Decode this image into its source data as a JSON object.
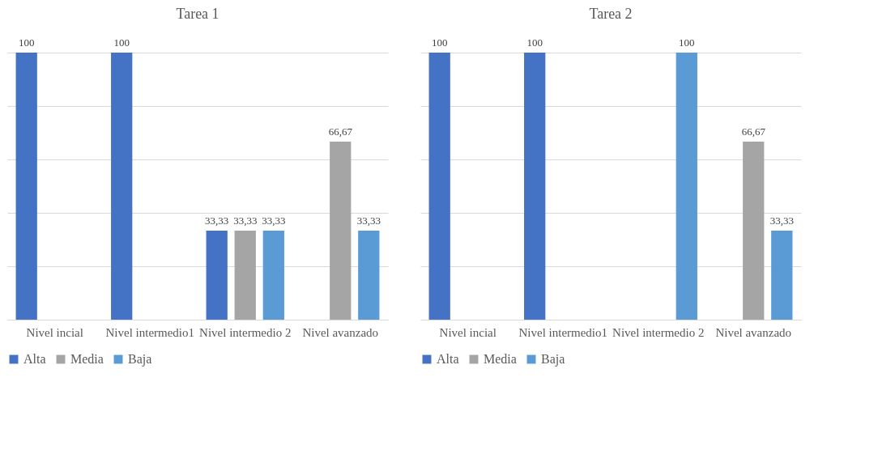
{
  "chart_data": [
    {
      "type": "bar",
      "title": "Tarea 1",
      "categories": [
        "Nivel incial",
        "Nivel intermedio1",
        "Nivel intermedio 2",
        "Nivel avanzado"
      ],
      "series": [
        {
          "name": "Alta",
          "color": "#4472c4",
          "values": [
            100,
            100,
            33.33,
            null
          ],
          "value_labels": [
            "100",
            "100",
            "33,33",
            null
          ]
        },
        {
          "name": "Media",
          "color": "#a5a5a5",
          "values": [
            null,
            null,
            33.33,
            66.67
          ],
          "value_labels": [
            null,
            null,
            "33,33",
            "66,67"
          ]
        },
        {
          "name": "Baja",
          "color": "#5b9bd5",
          "values": [
            null,
            null,
            33.33,
            33.33
          ],
          "value_labels": [
            null,
            null,
            "33,33",
            "33,33"
          ]
        }
      ],
      "tick_labels": "x",
      "grid": "y",
      "legend": "bottom"
    },
    {
      "type": "bar",
      "title": "Tarea 2",
      "categories": [
        "Nivel incial",
        "Nivel intermedio1",
        "Nivel intermedio 2",
        "Nivel avanzado"
      ],
      "series": [
        {
          "name": "Alta",
          "color": "#4472c4",
          "values": [
            100,
            100,
            null,
            null
          ],
          "value_labels": [
            "100",
            "100",
            null,
            null
          ]
        },
        {
          "name": "Media",
          "color": "#a5a5a5",
          "values": [
            null,
            null,
            null,
            66.67
          ],
          "value_labels": [
            null,
            null,
            null,
            "66,67"
          ]
        },
        {
          "name": "Baja",
          "color": "#5b9bd5",
          "values": [
            null,
            null,
            100,
            33.33
          ],
          "value_labels": [
            null,
            null,
            "100",
            "33,33"
          ]
        }
      ],
      "tick_labels": "x",
      "grid": "y",
      "legend": "bottom"
    }
  ]
}
